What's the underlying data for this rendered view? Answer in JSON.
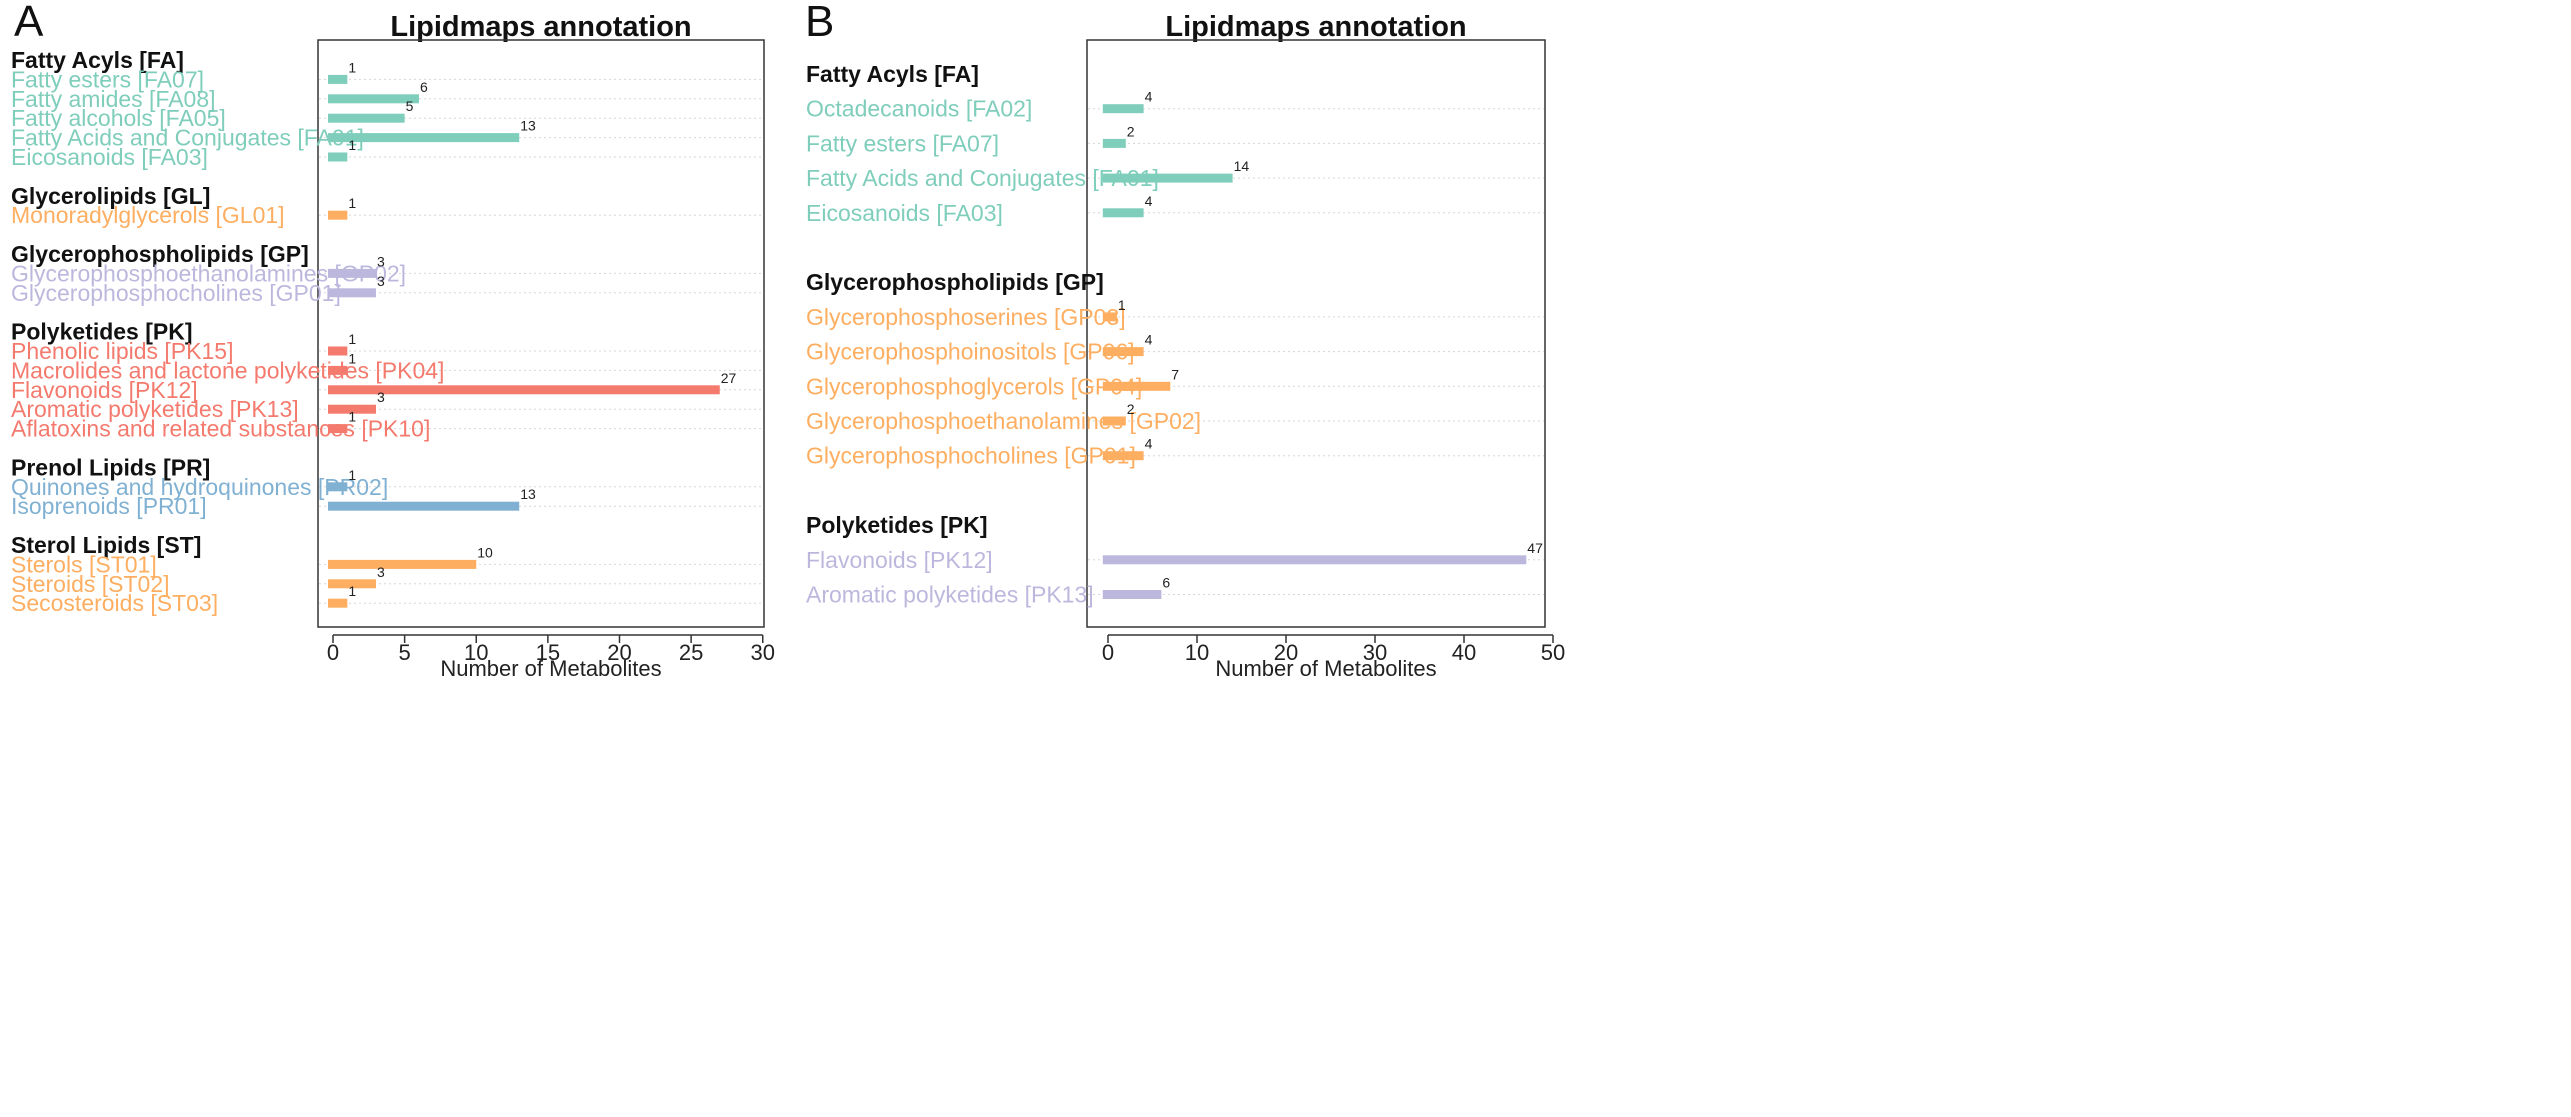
{
  "chart_data": [
    {
      "panel_label": "A",
      "type": "bar",
      "orientation": "horizontal",
      "title": "Lipidmaps annotation",
      "xlabel": "Number of Metabolites",
      "xlim": [
        -1,
        30
      ],
      "xticks": [
        0,
        5,
        10,
        15,
        20,
        25,
        30
      ],
      "groups": [
        {
          "name": "Fatty Acyls [FA]",
          "color": "#7fcdbb",
          "items": [
            {
              "label": "Fatty esters [FA07]",
              "value": 1
            },
            {
              "label": "Fatty amides [FA08]",
              "value": 6
            },
            {
              "label": "Fatty alcohols [FA05]",
              "value": 5
            },
            {
              "label": "Fatty Acids and Conjugates [FA01]",
              "value": 13
            },
            {
              "label": "Eicosanoids [FA03]",
              "value": 1
            }
          ]
        },
        {
          "name": "Glycerolipids [GL]",
          "color": "#fdae61",
          "items": [
            {
              "label": "Monoradylglycerols [GL01]",
              "value": 1
            }
          ]
        },
        {
          "name": "Glycerophospholipids [GP]",
          "color": "#bcb8dd",
          "items": [
            {
              "label": "Glycerophosphoethanolamines [GP02]",
              "value": 3
            },
            {
              "label": "Glycerophosphocholines [GP01]",
              "value": 3
            }
          ]
        },
        {
          "name": "Polyketides [PK]",
          "color": "#f47a6e",
          "items": [
            {
              "label": "Phenolic lipids [PK15]",
              "value": 1
            },
            {
              "label": "Macrolides and lactone polyketides [PK04]",
              "value": 1
            },
            {
              "label": "Flavonoids [PK12]",
              "value": 27
            },
            {
              "label": "Aromatic polyketides [PK13]",
              "value": 3
            },
            {
              "label": "Aflatoxins and related substances [PK10]",
              "value": 1
            }
          ]
        },
        {
          "name": "Prenol Lipids [PR]",
          "color": "#80b1d3",
          "items": [
            {
              "label": "Quinones and hydroquinones [PR02]",
              "value": 1
            },
            {
              "label": "Isoprenoids [PR01]",
              "value": 13
            }
          ]
        },
        {
          "name": "Sterol Lipids [ST]",
          "color": "#fdae61",
          "items": [
            {
              "label": "Sterols [ST01]",
              "value": 10
            },
            {
              "label": "Steroids [ST02]",
              "value": 3
            },
            {
              "label": "Secosteroids [ST03]",
              "value": 1
            }
          ]
        }
      ]
    },
    {
      "panel_label": "B",
      "type": "bar",
      "orientation": "horizontal",
      "title": "Lipidmaps annotation",
      "xlabel": "Number of Metabolites",
      "xlim": [
        -1,
        50
      ],
      "xticks": [
        0,
        10,
        20,
        30,
        40,
        50
      ],
      "groups": [
        {
          "name": "Fatty Acyls [FA]",
          "color": "#7fcdbb",
          "items": [
            {
              "label": "Octadecanoids [FA02]",
              "value": 4
            },
            {
              "label": "Fatty esters [FA07]",
              "value": 2
            },
            {
              "label": "Fatty Acids and Conjugates [FA01]",
              "value": 14
            },
            {
              "label": "Eicosanoids [FA03]",
              "value": 4
            }
          ]
        },
        {
          "name": "Glycerophospholipids [GP]",
          "color": "#fdae61",
          "items": [
            {
              "label": "Glycerophosphoserines [GP03]",
              "value": 1
            },
            {
              "label": "Glycerophosphoinositols [GP06]",
              "value": 4
            },
            {
              "label": "Glycerophosphoglycerols [GP04]",
              "value": 7
            },
            {
              "label": "Glycerophosphoethanolamines [GP02]",
              "value": 2
            },
            {
              "label": "Glycerophosphocholines [GP01]",
              "value": 4
            }
          ]
        },
        {
          "name": "Polyketides [PK]",
          "color": "#bcb8dd",
          "items": [
            {
              "label": "Flavonoids [PK12]",
              "value": 47
            },
            {
              "label": "Aromatic polyketides [PK13]",
              "value": 6
            }
          ]
        }
      ]
    }
  ]
}
